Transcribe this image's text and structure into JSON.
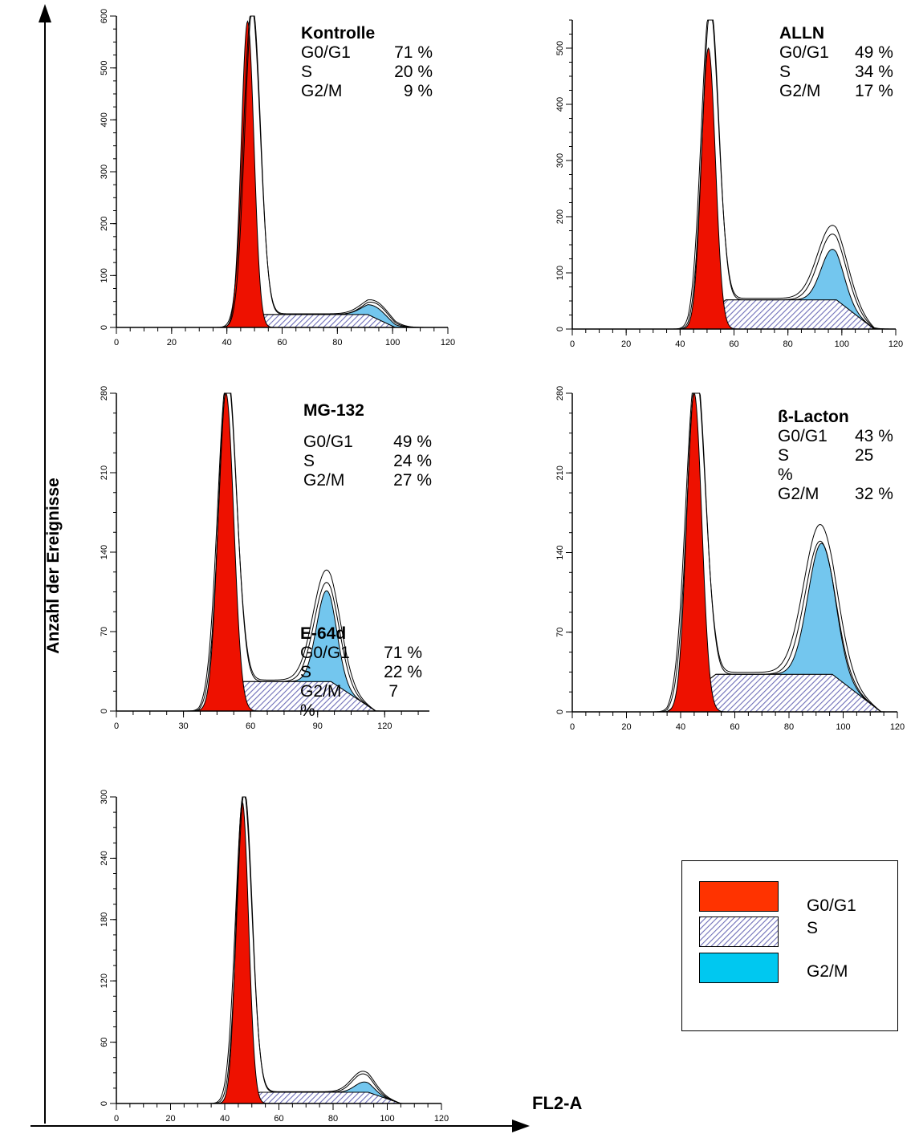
{
  "y_axis_label": "Anzahl der Ereignisse",
  "x_axis_label": "FL2-A",
  "colors": {
    "g0g1": "#ee1100",
    "g0g1_legend": "#ff3300",
    "s_hatch": "#6e6eb8",
    "g2m": "#73c6ee",
    "g2m_legend": "#00c8f0"
  },
  "legend": {
    "g0g1": "G0/G1",
    "s": "S",
    "g2m": "G2/M"
  },
  "panels": [
    {
      "title": "Kontrolle",
      "g0g1_label": "G0/G1",
      "g0g1_value": "71 %",
      "s_label": "S",
      "s_value": "20 %",
      "g2m_label": "G2/M",
      "g2m_value": "9 %"
    },
    {
      "title": "ALLN",
      "g0g1_label": "G0/G1",
      "g0g1_value": "49 %",
      "s_label": "S",
      "s_value": "34 %",
      "g2m_label": "G2/M",
      "g2m_value": "17 %"
    },
    {
      "title": "MG-132",
      "g0g1_label": "G0/G1",
      "g0g1_value": "49 %",
      "s_label": "S",
      "s_value": "24 %",
      "g2m_label": "G2/M",
      "g2m_value": "27 %"
    },
    {
      "title": "ß-Lacton",
      "g0g1_label": "G0/G1",
      "g0g1_value": "43 %",
      "s_label": "S",
      "s_value": "25",
      "s_value_wrap": "%",
      "g2m_label": "G2/M",
      "g2m_value": "32 %"
    },
    {
      "title": "E-64d",
      "g0g1_label": "G0/G1",
      "g0g1_value": "71 %",
      "s_label": "S",
      "s_value": "22 %",
      "g2m_label": "G2/M",
      "g2m_value": "7",
      "g2m_value_wrap": "%"
    }
  ],
  "chart_data": [
    {
      "type": "area",
      "title": "Kontrolle",
      "xlim": [
        0,
        120
      ],
      "ylim": [
        0,
        600
      ],
      "xticks": [
        0,
        20,
        40,
        60,
        80,
        100,
        120
      ],
      "yticks": [
        0,
        100,
        200,
        300,
        400,
        500,
        600
      ],
      "xticklabels": [
        "0",
        "20",
        "40",
        "60",
        "80",
        "100",
        "120"
      ],
      "yticklabels": [
        "0",
        "100",
        "200",
        "300",
        "400",
        "500",
        "600"
      ],
      "g1": {
        "mu": 47.5,
        "sd": 2.3,
        "h": 590,
        "mu2": 49,
        "sd2": 3,
        "h2": 600
      },
      "s": {
        "a": 47,
        "b": 96,
        "h": 25,
        "ramp": 5
      },
      "g2": {
        "mu": 93.5,
        "sd": 4.5,
        "h": 22,
        "mu2": 94,
        "sd2": 5,
        "h2": 32
      }
    },
    {
      "type": "area",
      "title": "ALLN",
      "xlim": [
        0,
        120
      ],
      "ylim": [
        0,
        550
      ],
      "xticks": [
        0,
        20,
        40,
        60,
        80,
        100,
        120
      ],
      "yticks": [
        0,
        100,
        200,
        300,
        400,
        500
      ],
      "xticklabels": [
        "0",
        "20",
        "40",
        "60",
        "80",
        "100",
        "120"
      ],
      "yticklabels": [
        "0",
        "100",
        "200",
        "300",
        "400",
        "500"
      ],
      "g1": {
        "mu": 50.5,
        "sd": 2.6,
        "h": 500,
        "mu2": 51,
        "sd2": 3.2,
        "h2": 545
      },
      "s": {
        "a": 50,
        "b": 105,
        "h": 52,
        "ramp": 7
      },
      "g2": {
        "mu": 96.5,
        "sd": 4.2,
        "h": 90,
        "mu2": 96.5,
        "sd2": 5.5,
        "h2": 130
      }
    },
    {
      "type": "area",
      "title": "MG-132",
      "xlim": [
        0,
        140
      ],
      "ylim": [
        0,
        280
      ],
      "xticks": [
        0,
        30,
        60,
        90,
        120
      ],
      "yticks": [
        0,
        70,
        140,
        210,
        280
      ],
      "xticklabels": [
        "0",
        "30",
        "60",
        "90",
        "120"
      ],
      "yticklabels": [
        "0",
        "70",
        "140",
        "210",
        "280"
      ],
      "g1": {
        "mu": 49,
        "sd": 3.5,
        "h": 280,
        "mu2": 49.5,
        "sd2": 4.2,
        "h2": 280
      },
      "s": {
        "a": 47,
        "b": 106,
        "h": 26,
        "ramp": 10
      },
      "g2": {
        "mu": 94,
        "sd": 4.5,
        "h": 80,
        "mu2": 94,
        "sd2": 6,
        "h2": 97
      }
    },
    {
      "type": "area",
      "title": "ß-Lacton",
      "xlim": [
        0,
        120
      ],
      "ylim": [
        0,
        280
      ],
      "xticks": [
        0,
        20,
        40,
        60,
        80,
        100,
        120
      ],
      "yticks": [
        0,
        70,
        140,
        210,
        280
      ],
      "xticklabels": [
        "0",
        "20",
        "40",
        "60",
        "80",
        "100",
        "120"
      ],
      "yticklabels": [
        "0",
        "70",
        "140",
        "210",
        "280"
      ],
      "g1": {
        "mu": 45,
        "sd": 2.8,
        "h": 280,
        "mu2": 45.5,
        "sd2": 3.6,
        "h2": 280
      },
      "s": {
        "a": 44,
        "b": 105,
        "h": 33,
        "ramp": 9
      },
      "g2": {
        "mu": 92,
        "sd": 5,
        "h": 115,
        "mu2": 91.5,
        "sd2": 6,
        "h2": 130
      }
    },
    {
      "type": "area",
      "title": "E-64d",
      "xlim": [
        0,
        120
      ],
      "ylim": [
        0,
        300
      ],
      "xticks": [
        0,
        20,
        40,
        60,
        80,
        100,
        120
      ],
      "yticks": [
        0,
        60,
        120,
        180,
        240,
        300
      ],
      "xticklabels": [
        "0",
        "20",
        "40",
        "60",
        "80",
        "100",
        "120"
      ],
      "yticklabels": [
        "0",
        "60",
        "120",
        "180",
        "240",
        "300"
      ],
      "g1": {
        "mu": 46.5,
        "sd": 2.3,
        "h": 295,
        "mu2": 47,
        "sd2": 3,
        "h2": 300
      },
      "s": {
        "a": 47,
        "b": 99,
        "h": 11,
        "ramp": 6
      },
      "g2": {
        "mu": 91.5,
        "sd": 3.5,
        "h": 10,
        "mu2": 91,
        "sd2": 4.2,
        "h2": 20
      }
    }
  ]
}
